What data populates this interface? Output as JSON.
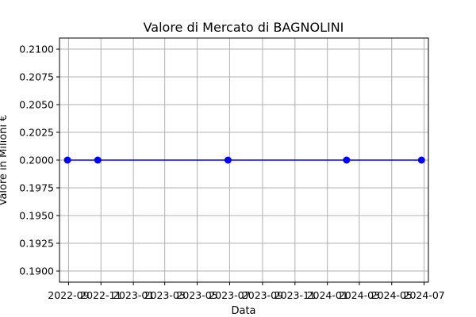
{
  "chart_data": {
    "type": "line",
    "title": "Valore di Mercato di BAGNOLINI",
    "xlabel": "Data",
    "ylabel": "Valore in Milioni €",
    "x_ticks": [
      "2022-09",
      "2022-11",
      "2023-01",
      "2023-03",
      "2023-05",
      "2023-07",
      "2023-09",
      "2023-11",
      "2024-01",
      "2024-03",
      "2024-05",
      "2024-07"
    ],
    "y_ticks": [
      "0.1900",
      "0.1925",
      "0.1950",
      "0.1975",
      "0.2000",
      "0.2025",
      "0.2050",
      "0.2075",
      "0.2100"
    ],
    "xlim": [
      "2022-08-15",
      "2024-07-09"
    ],
    "ylim": [
      0.189,
      0.211
    ],
    "grid": true,
    "series": [
      {
        "color": "#0000ff",
        "marker": "circle",
        "points": [
          {
            "x": "2022-08-30",
            "y": 0.2
          },
          {
            "x": "2022-10-26",
            "y": 0.2
          },
          {
            "x": "2023-06-28",
            "y": 0.2
          },
          {
            "x": "2024-02-06",
            "y": 0.2
          },
          {
            "x": "2024-06-26",
            "y": 0.2
          }
        ]
      }
    ]
  }
}
